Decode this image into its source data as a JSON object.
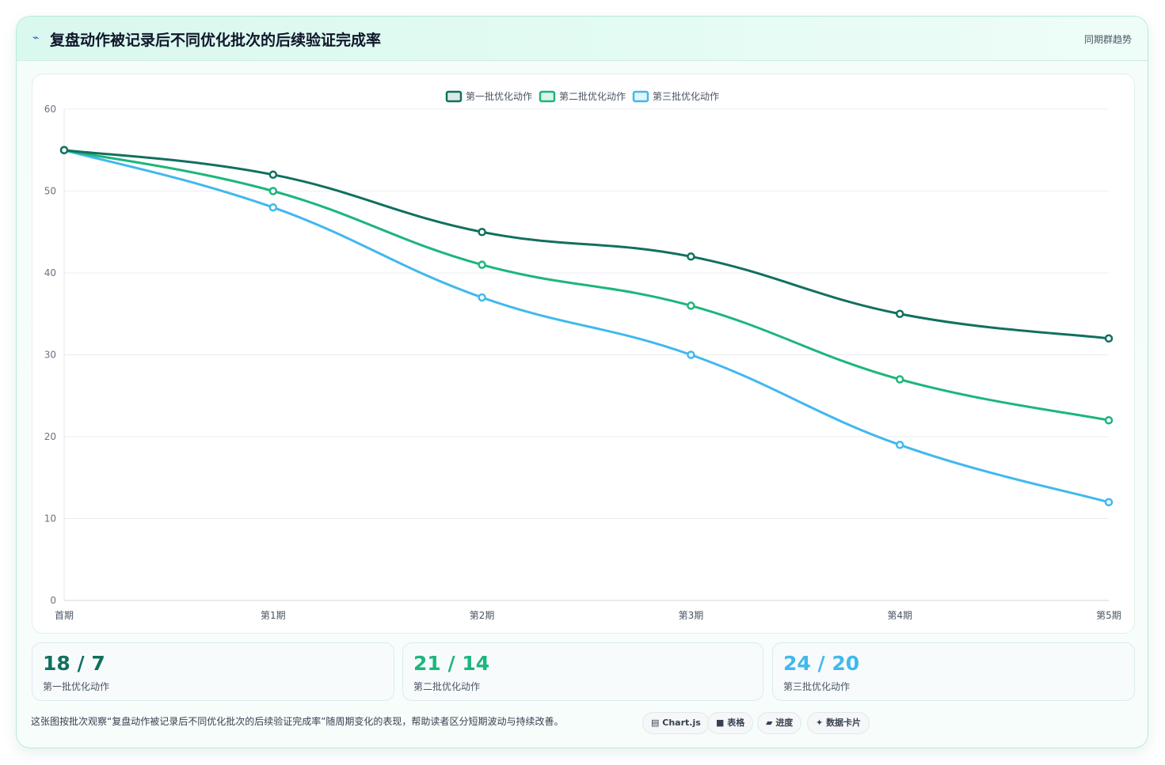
{
  "header": {
    "icon": "bolt-icon",
    "title": "复盘动作被记录后不同优化批次的后续验证完成率",
    "right_label": "同期群趋势"
  },
  "chart_data": {
    "type": "line",
    "title": "",
    "xlabel": "",
    "ylabel": "",
    "categories": [
      "首期",
      "第1期",
      "第2期",
      "第3期",
      "第4期",
      "第5期"
    ],
    "ylim": [
      0,
      60
    ],
    "yticks": [
      0,
      10,
      20,
      30,
      40,
      50,
      60
    ],
    "grid": true,
    "legend_position": "top-center",
    "series": [
      {
        "name": "第一批优化动作",
        "color": "#11705f",
        "values": [
          55,
          52,
          45,
          42,
          35,
          32
        ]
      },
      {
        "name": "第二批优化动作",
        "color": "#1db67c",
        "values": [
          55,
          50,
          41,
          36,
          27,
          22
        ]
      },
      {
        "name": "第三批优化动作",
        "color": "#41b8ee",
        "values": [
          55,
          48,
          37,
          30,
          19,
          12
        ]
      }
    ]
  },
  "stats": [
    {
      "value": "18 / 7",
      "label": "第一批优化动作",
      "color": "#11705f"
    },
    {
      "value": "21 / 14",
      "label": "第二批优化动作",
      "color": "#1db67c"
    },
    {
      "value": "24 / 20",
      "label": "第三批优化动作",
      "color": "#41b8ee"
    }
  ],
  "footer": {
    "note": "这张图按批次观察“复盘动作被记录后不同优化批次的后续验证完成率”随周期变化的表现，帮助读者区分短期波动与持续改善。",
    "tags": [
      {
        "icon": "chart-icon",
        "glyph": "▤",
        "label": "Chart.js"
      },
      {
        "icon": "table-icon",
        "glyph": "■",
        "label": "表格"
      },
      {
        "icon": "progress-icon",
        "glyph": "▰",
        "label": "进度"
      },
      {
        "icon": "sparkle-icon",
        "glyph": "✦",
        "label": "数据卡片"
      }
    ]
  }
}
